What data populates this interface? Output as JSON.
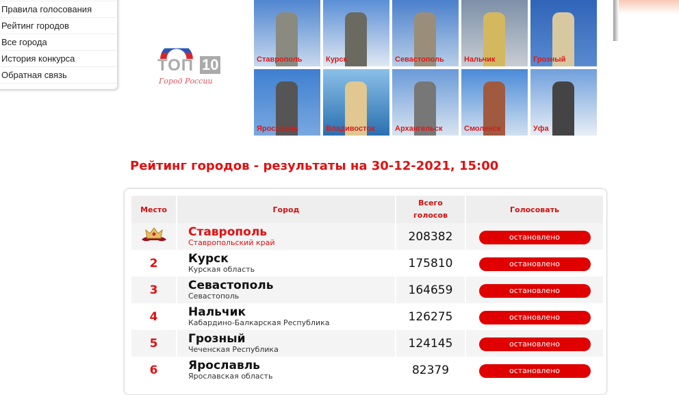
{
  "menu": {
    "items": [
      {
        "label": "Правила голосования"
      },
      {
        "label": "Рейтинг городов"
      },
      {
        "label": "Все города"
      },
      {
        "label": "История конкурса"
      },
      {
        "label": "Обратная связь"
      }
    ]
  },
  "logo": {
    "top": "ТОП",
    "ten": "10",
    "sub": "Город России"
  },
  "tiles": [
    {
      "label": "Ставрополь"
    },
    {
      "label": "Курск"
    },
    {
      "label": "Севастополь"
    },
    {
      "label": "Нальчик"
    },
    {
      "label": "Грозный"
    },
    {
      "label": "Ярославль"
    },
    {
      "label": "Владивосток"
    },
    {
      "label": "Архангельск"
    },
    {
      "label": "Смоленск"
    },
    {
      "label": "Уфа"
    }
  ],
  "title": "Рейтинг городов - результаты на 30-12-2021, 15:00",
  "table": {
    "headers": {
      "place": "Место",
      "city": "Город",
      "votes": "Всего голосов",
      "vote": "Голосовать"
    },
    "rows": [
      {
        "place": "1",
        "city": "Ставрополь",
        "region": "Ставропольский край",
        "votes": "208382",
        "button": "остановлено"
      },
      {
        "place": "2",
        "city": "Курск",
        "region": "Курская область",
        "votes": "175810",
        "button": "остановлено"
      },
      {
        "place": "3",
        "city": "Севастополь",
        "region": "Севастополь",
        "votes": "164659",
        "button": "остановлено"
      },
      {
        "place": "4",
        "city": "Нальчик",
        "region": "Кабардино-Балкарская Республика",
        "votes": "126275",
        "button": "остановлено"
      },
      {
        "place": "5",
        "city": "Грозный",
        "region": "Чеченская Республика",
        "votes": "124145",
        "button": "остановлено"
      },
      {
        "place": "6",
        "city": "Ярославль",
        "region": "Ярославская область",
        "votes": "82379",
        "button": "остановлено"
      }
    ]
  },
  "colors": {
    "accent": "#e01010",
    "button": "#e00000"
  }
}
